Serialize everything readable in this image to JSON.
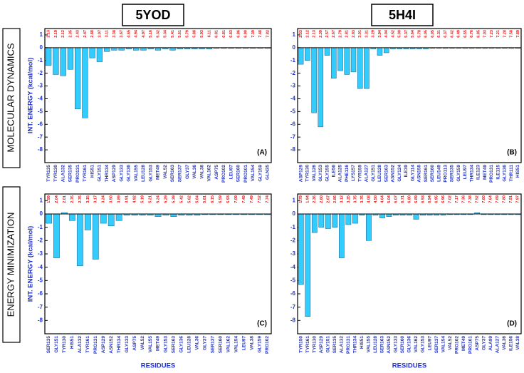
{
  "columns": [
    "5YOD",
    "5H4I"
  ],
  "rows": [
    "MOLECULAR DYNAMICS",
    "ENERGY MINIMIZATION"
  ],
  "chart_data": [
    {
      "type": "bar",
      "label": "(A)",
      "ylabel": "INT. ENERGY (kcal/mol)",
      "color": "#33ccff",
      "ylim": [
        -9,
        1.5
      ],
      "yticks": [
        1,
        0,
        -1,
        -2,
        -3,
        -4,
        -5,
        -6,
        -7,
        -8
      ],
      "categories": [
        "TYR135",
        "TYR130",
        "ALA132",
        "SER135",
        "PRO131",
        "TYR161",
        "HIS51",
        "GLY151",
        "THR134",
        "ASP129",
        "GLY133",
        "GLY136",
        "VAL155",
        "LEU128",
        "GLY153",
        "MET49",
        "VAL52",
        "SER163",
        "SER137",
        "GLY37",
        "VAL36",
        "VAL38",
        "VAL162",
        "ASP75",
        "PRO102",
        "LEU97",
        "SER160",
        "PRO101",
        "VAL154",
        "GLY159",
        "GLN35"
      ],
      "values": [
        -1.4,
        -2.1,
        -2.2,
        -1.7,
        -4.8,
        -5.5,
        -0.8,
        -1.1,
        -0.3,
        -0.2,
        -0.2,
        -0.1,
        -0.2,
        -0.2,
        -0.1,
        -0.2,
        -0.1,
        -0.2,
        -0.1,
        -0.1,
        -0.1,
        -0.1,
        -0.1,
        -0.05,
        -0.05,
        -0.05,
        -0.05,
        -0.05,
        -0.05,
        -0.05,
        -0.05
      ],
      "distances": [
        "2.13",
        "2.19",
        "2.12",
        "2.35",
        "2.43",
        "2.47",
        "2.88",
        "3.07",
        "3.11",
        "3.38",
        "3.67",
        "4.65",
        "4.94",
        "4.97",
        "5.16",
        "5.32",
        "5.34",
        "5.41",
        "5.61",
        "5.79",
        "5.88",
        "5.93",
        "6.11",
        "6.81",
        "6.81",
        "6.83",
        "6.86",
        "6.90",
        "7.39",
        "7.48",
        "7.82"
      ]
    },
    {
      "type": "bar",
      "label": "(B)",
      "color": "#33ccff",
      "ylim": [
        -9,
        1.5
      ],
      "yticks": [
        1,
        0,
        -1,
        -2,
        -3,
        -4,
        -5,
        -6,
        -7,
        -8
      ],
      "categories": [
        "ASP129",
        "TYR130",
        "VAL126",
        "GLY153",
        "GLY155",
        "ILE56",
        "ALA125",
        "PHE116",
        "LYS157",
        "TYR159",
        "ALA127",
        "GLY151",
        "LEU128",
        "SER163",
        "ASN152",
        "GLY124",
        "ILE39",
        "GLY114",
        "ASN158",
        "SER161",
        "SER160",
        "LEU149",
        "PRO113",
        "SER135",
        "GLY159",
        "LEU97",
        "THR134",
        "ILE123",
        "MET49",
        "PRO131",
        "ILE115",
        "GLY136",
        "THR111",
        "HIS51"
      ],
      "values": [
        -1.3,
        -1.0,
        -5.1,
        -6.2,
        -0.6,
        -2.4,
        -1.8,
        -2.1,
        -1.9,
        -3.2,
        -3.2,
        -0.1,
        -0.6,
        -0.4,
        -0.1,
        -0.1,
        -0.1,
        -0.1,
        -0.1,
        -0.1,
        -0.05,
        -0.05,
        -0.05,
        -0.05,
        -0.05,
        -0.05,
        -0.05,
        -0.05,
        -0.05,
        -0.05,
        -0.05,
        -0.05,
        -0.05,
        -0.05
      ],
      "distances": [
        "2.33",
        "2.12",
        "2.13",
        "2.39",
        "2.57",
        "2.67",
        "2.79",
        "2.81",
        "2.83",
        "3.01",
        "3.31",
        "3.29",
        "3.94",
        "4.04",
        "4.52",
        "5.00",
        "5.37",
        "5.64",
        "5.78",
        "6.05",
        "6.05",
        "6.31",
        "6.37",
        "6.42",
        "6.49",
        "6.55",
        "6.76",
        "6.85",
        "7.03",
        "7.23",
        "7.21",
        "7.28",
        "7.58",
        "7.89"
      ]
    },
    {
      "type": "bar",
      "label": "(C)",
      "ylabel": "INT. ENERGY (kcal/mol)",
      "xlabel": "RESIDUES",
      "color": "#33ccff",
      "ylim": [
        -9,
        1.5
      ],
      "yticks": [
        1,
        0,
        -1,
        -2,
        -3,
        -4,
        -5,
        -6,
        -7,
        -8
      ],
      "categories": [
        "SER135",
        "GLY151",
        "TYR130",
        "HIS51",
        "ALA132",
        "TYR161",
        "PRO131",
        "ASP129",
        "ASN152",
        "THR134",
        "GLY133",
        "ASP75",
        "VAL52",
        "VAL155",
        "MET49",
        "GLY153",
        "SER163",
        "GLY136",
        "LEU128",
        "VAL36",
        "GLY37",
        "SER137",
        "SER160",
        "VAL162",
        "VAL154",
        "LEU97",
        "VAL38",
        "GLY159",
        "PRO102"
      ],
      "values": [
        -0.7,
        -3.3,
        0.1,
        -0.5,
        -3.9,
        -1.2,
        -3.4,
        -0.7,
        -0.9,
        -0.5,
        -0.1,
        -0.1,
        -0.1,
        -0.1,
        -0.2,
        -0.1,
        -0.2,
        -0.1,
        -0.1,
        -0.1,
        -0.05,
        -0.05,
        -0.05,
        -0.05,
        -0.05,
        -0.05,
        -0.05,
        -0.05,
        -0.05
      ],
      "distances": [
        "1.99",
        "2.04",
        "2.01",
        "2.76",
        "2.76",
        "3.15",
        "3.17",
        "3.24",
        "3.50",
        "3.89",
        "3.91",
        "4.92",
        "5.19",
        "5.21",
        "5.24",
        "5.29",
        "5.39",
        "5.42",
        "5.62",
        "5.64",
        "5.81",
        "6.15",
        "6.59",
        "6.93",
        "7.09",
        "7.49",
        "7.49",
        "7.52",
        "7.74"
      ]
    },
    {
      "type": "bar",
      "label": "(D)",
      "xlabel": "RESIDUES",
      "color": "#33ccff",
      "ylim": [
        -9,
        1.5
      ],
      "yticks": [
        1,
        0,
        -1,
        -2,
        -3,
        -4,
        -5,
        -6,
        -7,
        -8
      ],
      "categories": [
        "TYR150",
        "TYR161",
        "TYR130",
        "ASP129",
        "GLY151",
        "SER135",
        "ALA132",
        "PRO131",
        "THR134",
        "HIS51",
        "VAL155",
        "LEU128",
        "SER163",
        "ASN152",
        "GLY133",
        "SER160",
        "GLY136",
        "VAL162",
        "GLY153",
        "LEU97",
        "SER137",
        "VAL154",
        "VAL52",
        "PRO102",
        "MET49",
        "PRO101",
        "ASP75",
        "GLY37",
        "ALA99",
        "ALA127",
        "VAL36",
        "ILE156",
        "VAL38"
      ],
      "values": [
        -5.3,
        -7.7,
        -1.4,
        -1.0,
        -1.1,
        -1.0,
        -3.3,
        -0.8,
        -0.7,
        -0.1,
        -2.0,
        -0.1,
        -0.3,
        -0.2,
        -0.1,
        -0.1,
        -0.1,
        -0.4,
        -0.1,
        -0.1,
        -0.1,
        -0.1,
        -0.05,
        -0.05,
        -0.05,
        -0.05,
        0.1,
        -0.05,
        -0.05,
        -0.05,
        -0.05,
        -0.05,
        -0.05
      ],
      "distances": [
        "1.79",
        "1.94",
        "2.36",
        "2.60",
        "2.67",
        "2.86",
        "3.12",
        "3.35",
        "3.75",
        "3.76",
        "4.08",
        "4.50",
        "4.64",
        "5.04",
        "6.07",
        "6.71",
        "6.80",
        "6.89",
        "6.93",
        "6.94",
        "6.95",
        "6.96",
        "7.02",
        "7.17",
        "7.36",
        "7.38",
        "7.52",
        "7.60",
        "7.64",
        "7.69",
        "7.80",
        "7.91",
        "7.97"
      ]
    }
  ]
}
